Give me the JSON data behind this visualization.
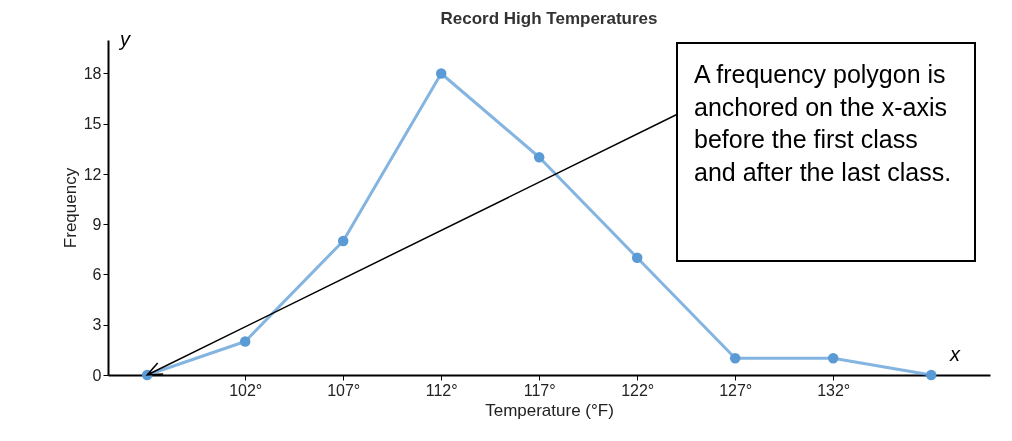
{
  "chart_data": {
    "type": "line",
    "title": "Record High Temperatures",
    "xlabel": "Temperature (°F)",
    "ylabel": "Frequency",
    "x": [
      97,
      102,
      107,
      112,
      117,
      122,
      127,
      132,
      137
    ],
    "series": [
      {
        "color": "#5b9bd5",
        "values": [
          0,
          2,
          8,
          18,
          13,
          7,
          1,
          1,
          0
        ]
      }
    ],
    "xlim": [
      95,
      140
    ],
    "xticks": [
      {
        "value": 102,
        "label": "102°"
      },
      {
        "value": 107,
        "label": "107°"
      },
      {
        "value": 112,
        "label": "112°"
      },
      {
        "value": 117,
        "label": "117°"
      },
      {
        "value": 122,
        "label": "122°"
      },
      {
        "value": 127,
        "label": "127°"
      },
      {
        "value": 132,
        "label": "132°"
      }
    ],
    "ylim": [
      0,
      20
    ],
    "yticks": [
      0,
      3,
      6,
      9,
      12,
      15,
      18
    ],
    "grid": false,
    "legend": false,
    "marker": "circle",
    "line_style": "solid",
    "annotations": [
      {
        "text": "A frequency polygon is anchored on the x-axis before the first class and after the last class.",
        "x": 97,
        "y": 0
      },
      "x",
      "y"
    ]
  }
}
